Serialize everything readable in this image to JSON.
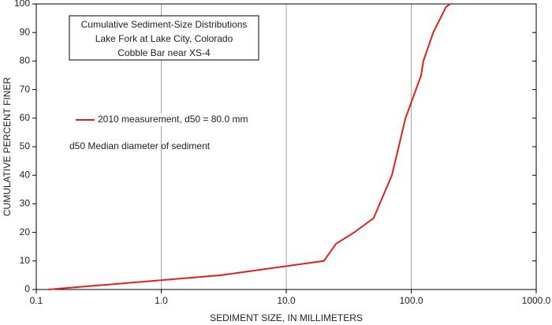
{
  "chart_data": {
    "type": "line",
    "title": [
      "Cumulative Sediment-Size Distributions",
      "Lake Fork at Lake City, Colorado",
      "Cobble Bar near XS-4"
    ],
    "annotation": "d50  Median diameter of sediment",
    "x_label": "SEDIMENT SIZE, IN MILLIMETERS",
    "y_label": "CUMULATIVE PERCENT FINER",
    "x_scale": "log",
    "xlim": [
      0.1,
      1000
    ],
    "xticks": [
      0.1,
      {
        "value": 1,
        "label": "1.0"
      },
      {
        "value": 10,
        "label": "10.0"
      },
      {
        "value": 100,
        "label": "100.0"
      },
      {
        "value": 1000,
        "label": "1000.0"
      }
    ],
    "ylim": [
      0,
      100
    ],
    "yticks": [
      0,
      10,
      20,
      30,
      40,
      50,
      60,
      70,
      80,
      90,
      100
    ],
    "grid": "x",
    "legend": "upper-left",
    "series": [
      {
        "name": "2010 measurement, d50 = 80.0 mm",
        "color": "#e0201b",
        "x": [
          0.125,
          3,
          20,
          25,
          35,
          50,
          70,
          90,
          120,
          125,
          150,
          190,
          205
        ],
        "values": [
          0,
          5,
          10,
          16,
          20,
          25,
          40,
          60,
          75,
          80,
          90,
          99,
          100
        ]
      }
    ]
  }
}
